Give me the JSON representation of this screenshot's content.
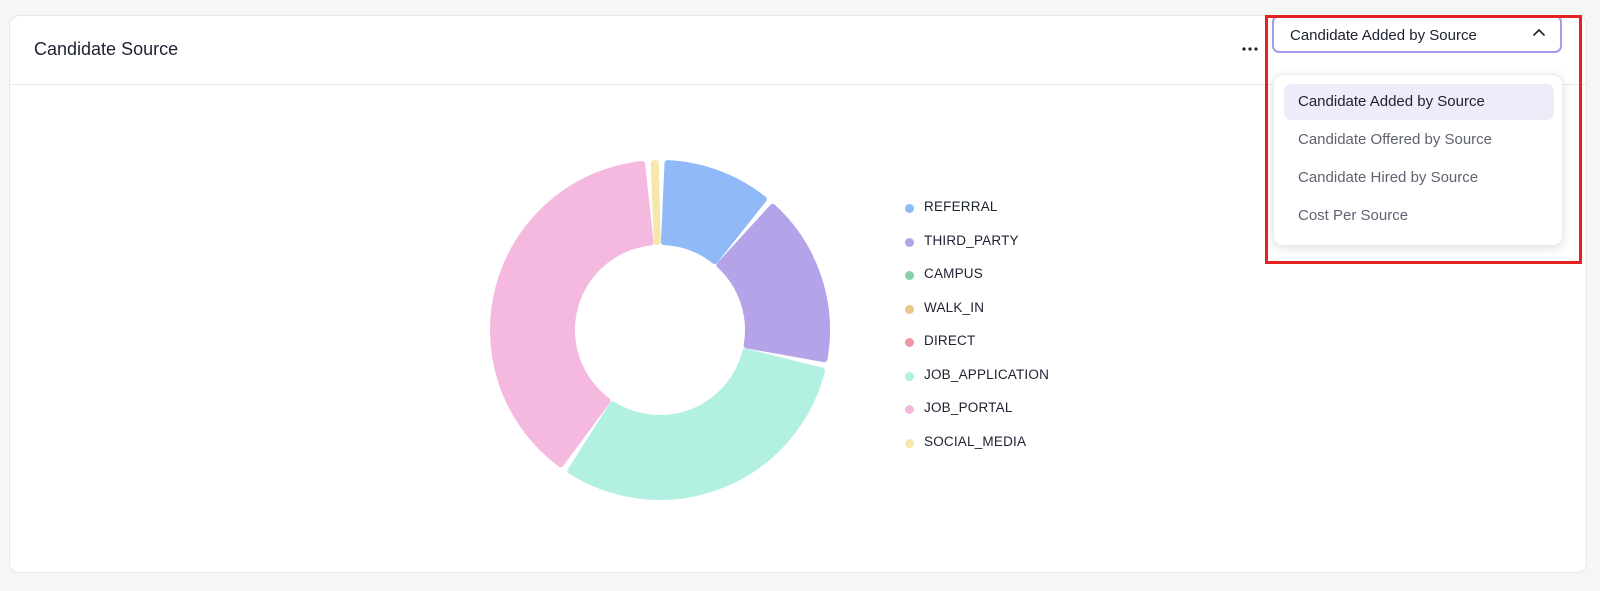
{
  "card": {
    "title": "Candidate Source"
  },
  "select": {
    "value": "Candidate Added by Source",
    "options": [
      "Candidate Added by Source",
      "Candidate Offered by Source",
      "Candidate Hired by Source",
      "Cost Per Source"
    ],
    "selected_index": 0
  },
  "chart_data": {
    "type": "pie",
    "subtype": "donut",
    "legend_position": "right",
    "series": [
      {
        "name": "REFERRAL",
        "value": 11,
        "color": "#8fbaf7"
      },
      {
        "name": "THIRD_PARTY",
        "value": 17,
        "color": "#b4a3e8"
      },
      {
        "name": "CAMPUS",
        "value": 0,
        "color": "#86d1a6"
      },
      {
        "name": "WALK_IN",
        "value": 0,
        "color": "#ebc68a"
      },
      {
        "name": "DIRECT",
        "value": 0,
        "color": "#f097a4"
      },
      {
        "name": "JOB_APPLICATION",
        "value": 31,
        "color": "#b2f0e2"
      },
      {
        "name": "JOB_PORTAL",
        "value": 39,
        "color": "#f5b9e0"
      },
      {
        "name": "SOCIAL_MEDIA",
        "value": 1.3,
        "color": "#f6e8ad"
      }
    ]
  },
  "icons": {
    "more": "more-horizontal-icon",
    "chevron": "chevron-up-icon"
  }
}
